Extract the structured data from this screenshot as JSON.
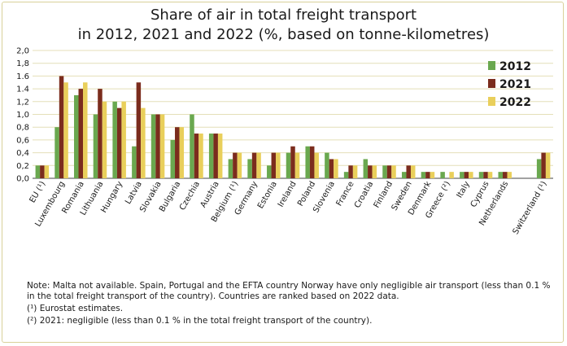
{
  "chart_data": {
    "type": "bar",
    "title_line1": "Share of air in total freight transport",
    "title_line2": "in 2012, 2021 and 2022 (%, based on tonne-kilometres)",
    "ylim": [
      0,
      2.0
    ],
    "y_ticks": [
      "0,0",
      "0,2",
      "0,4",
      "0,6",
      "0,8",
      "1,0",
      "1,2",
      "1.4",
      "1.6",
      "1,8",
      "2,0"
    ],
    "grid": true,
    "legend_position": "right",
    "categories": [
      "EU (¹)",
      "Luxembourg",
      "Romania",
      "Lithuania",
      "Hungary",
      "Latvia",
      "Slovakia",
      "Bulgaria",
      "Czechia",
      "Austria",
      "Belgium (¹)",
      "Germany",
      "Estonia",
      "Ireland",
      "Poland",
      "Slovenia",
      "France",
      "Croatia",
      "Finland",
      "Sweden",
      "Denmark",
      "Greece (²)",
      "Italy",
      "Cyprus",
      "Netherlands",
      "",
      "Switzerland (¹)"
    ],
    "series": [
      {
        "name": "2012",
        "color": "#6aa84f",
        "values": [
          0.2,
          0.8,
          1.3,
          1.0,
          1.2,
          0.5,
          1.0,
          0.6,
          1.0,
          0.7,
          0.3,
          0.3,
          0.2,
          0.4,
          0.5,
          0.4,
          0.1,
          0.3,
          0.2,
          0.1,
          0.1,
          0.1,
          0.1,
          0.1,
          0.1,
          null,
          0.3
        ]
      },
      {
        "name": "2021",
        "color": "#7b2c1d",
        "values": [
          0.2,
          1.6,
          1.4,
          1.4,
          1.1,
          1.5,
          1.0,
          0.8,
          0.7,
          0.7,
          0.4,
          0.4,
          0.4,
          0.5,
          0.5,
          0.3,
          0.2,
          0.2,
          0.2,
          0.2,
          0.1,
          null,
          0.1,
          0.1,
          0.1,
          null,
          0.4
        ]
      },
      {
        "name": "2022",
        "color": "#e9cf5b",
        "values": [
          0.2,
          1.5,
          1.5,
          1.2,
          1.2,
          1.1,
          1.0,
          0.8,
          0.7,
          0.7,
          0.4,
          0.4,
          0.4,
          0.4,
          0.4,
          0.3,
          0.2,
          0.2,
          0.2,
          0.2,
          0.1,
          0.1,
          0.1,
          0.1,
          0.1,
          null,
          0.4
        ]
      }
    ]
  },
  "notes": {
    "line1": "Note: Malta not available. Spain, Portugal and the EFTA country Norway have only negligible air transport (less than 0.1 % in the total freight transport of the country). Countries are ranked based on 2022 data.",
    "line2": "(¹) Eurostat estimates.",
    "line3": "(²) 2021: negligible (less than 0.1 % in the total freight transport of the country)."
  }
}
